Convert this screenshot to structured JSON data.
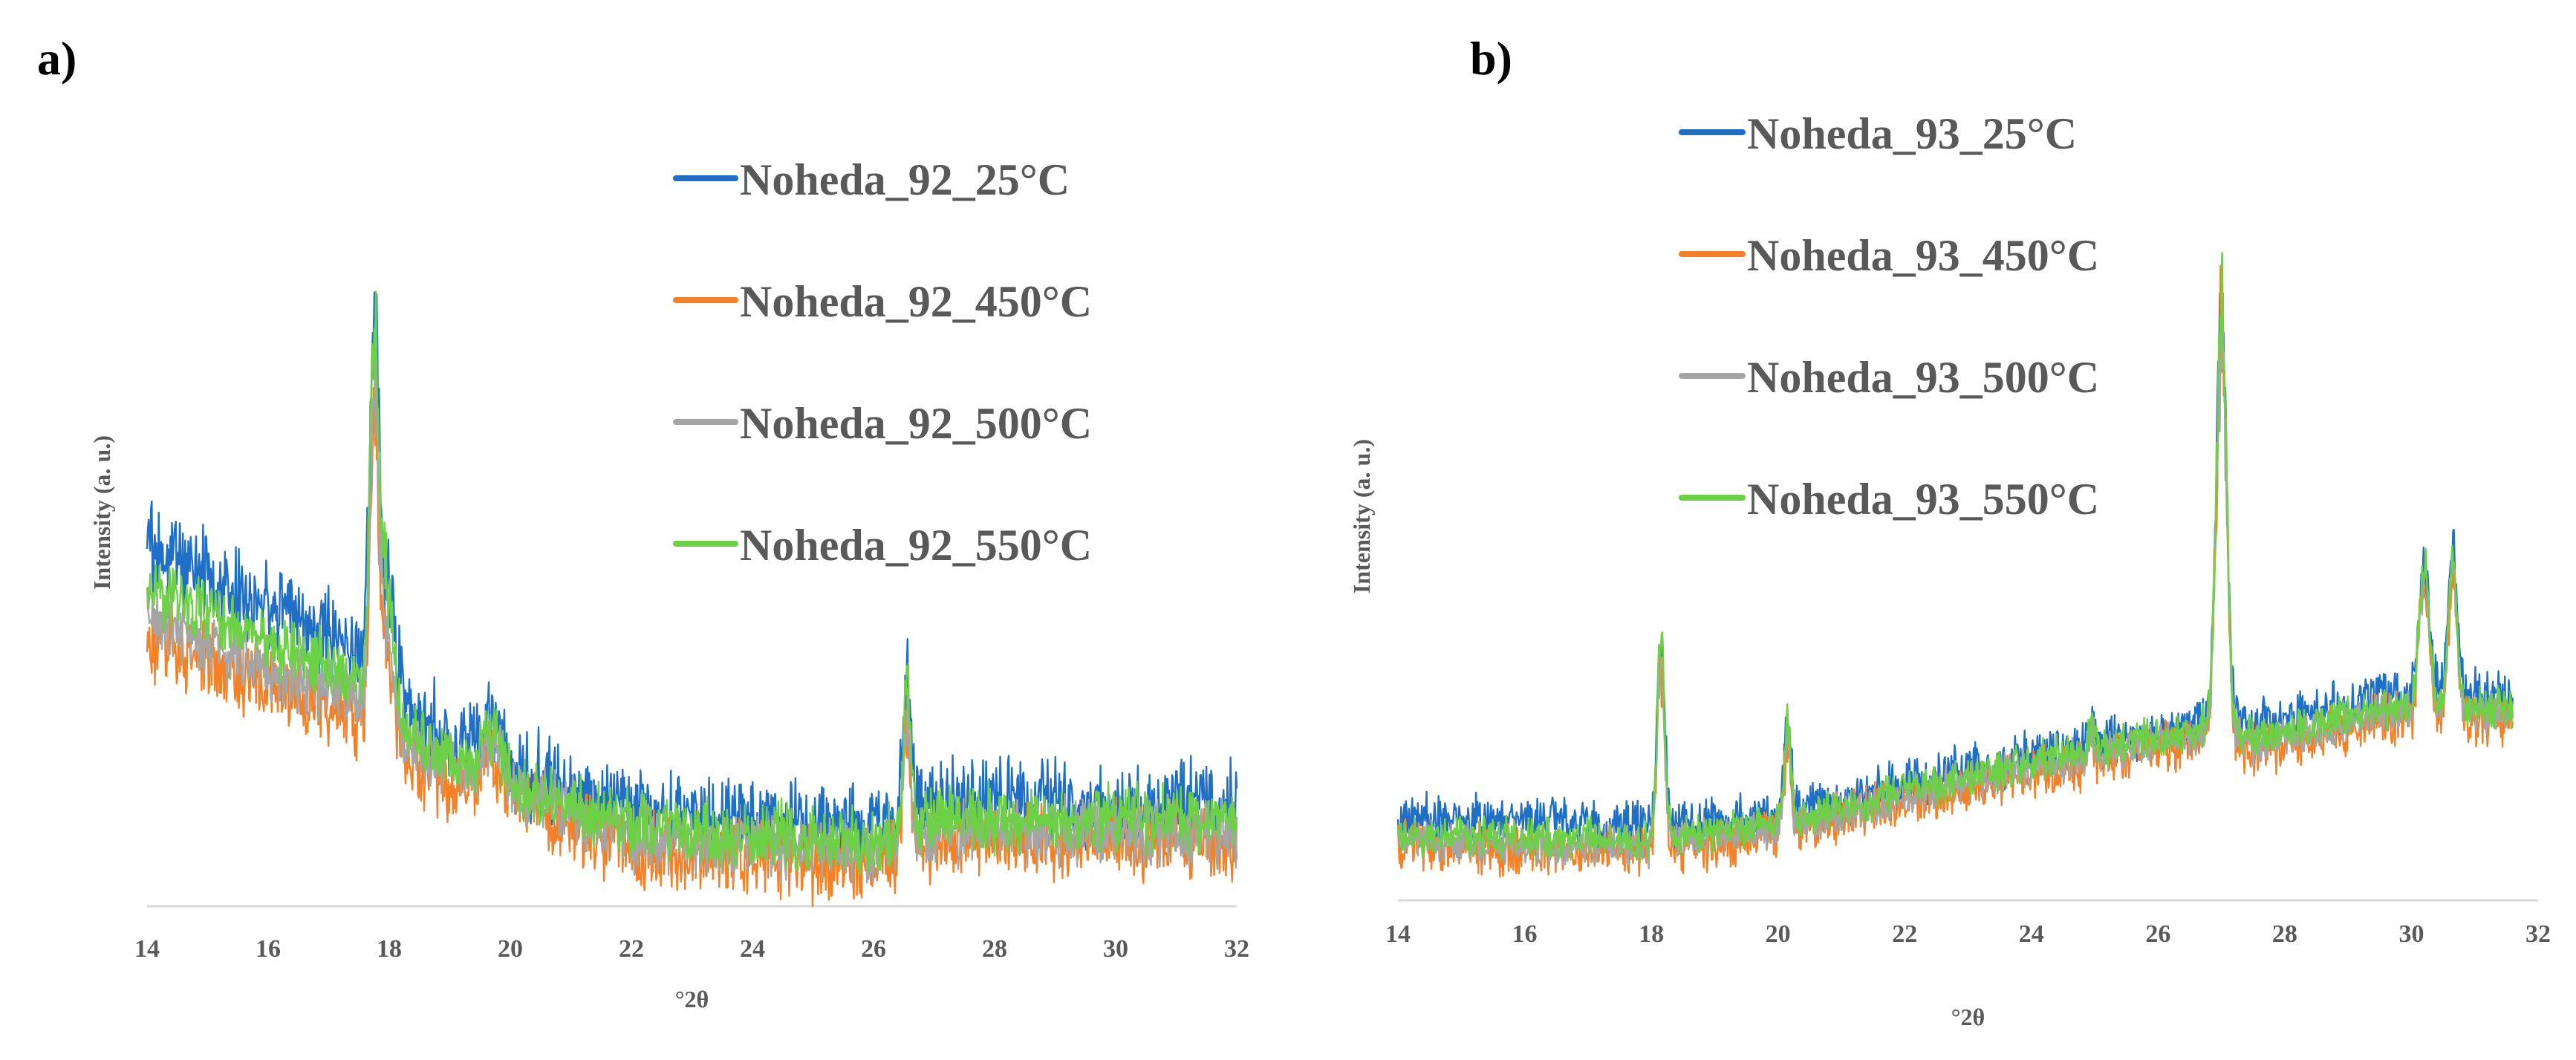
{
  "chart_data": [
    {
      "panel": "a)",
      "type": "line",
      "xlabel": "°2θ",
      "ylabel": "Intensity (a. u.)",
      "xlim": [
        14,
        32
      ],
      "ylim": [
        0,
        100
      ],
      "xticks": [
        "14",
        "16",
        "18",
        "20",
        "22",
        "24",
        "26",
        "28",
        "30",
        "32"
      ],
      "legend_position": "top-right",
      "peaks": [
        {
          "x": 17.75,
          "width": 0.07,
          "height": 55
        },
        {
          "x": 17.95,
          "width": 0.12,
          "height": 18
        },
        {
          "x": 19.7,
          "width": 0.15,
          "height": 7
        },
        {
          "x": 26.55,
          "width": 0.06,
          "height": 22
        }
      ],
      "series": [
        {
          "name": "Noheda_92_25°C",
          "color": "#1f6fc6",
          "baseline": [
            [
              14,
              62
            ],
            [
              16,
              52
            ],
            [
              17.5,
              44
            ],
            [
              18.5,
              32
            ],
            [
              20,
              24
            ],
            [
              22,
              17
            ],
            [
              24,
              15
            ],
            [
              26,
              14
            ],
            [
              27,
              18
            ],
            [
              32,
              18
            ]
          ],
          "noise": 9,
          "peak_scale": 1.05
        },
        {
          "name": "Noheda_92_450°C",
          "color": "#f58025",
          "baseline": [
            [
              14,
              46
            ],
            [
              16,
              38
            ],
            [
              17.5,
              32
            ],
            [
              18.5,
              24
            ],
            [
              20,
              18
            ],
            [
              22,
              10
            ],
            [
              24,
              8
            ],
            [
              26,
              7
            ],
            [
              27,
              11
            ],
            [
              32,
              11
            ]
          ],
          "noise": 8,
          "peak_scale": 0.92
        },
        {
          "name": "Noheda_92_500°C",
          "color": "#a5a5a5",
          "baseline": [
            [
              14,
              50
            ],
            [
              16,
              41
            ],
            [
              17.5,
              35
            ],
            [
              18.5,
              26
            ],
            [
              20,
              20
            ],
            [
              22,
              12
            ],
            [
              24,
              10
            ],
            [
              26,
              9
            ],
            [
              27,
              13
            ],
            [
              32,
              13
            ]
          ],
          "noise": 7,
          "peak_scale": 0.95
        },
        {
          "name": "Noheda_92_550°C",
          "color": "#6cd145",
          "baseline": [
            [
              14,
              55
            ],
            [
              16,
              46
            ],
            [
              17.5,
              39
            ],
            [
              18.5,
              28
            ],
            [
              20,
              21
            ],
            [
              22,
              14
            ],
            [
              24,
              12
            ],
            [
              26,
              11
            ],
            [
              27,
              15
            ],
            [
              32,
              15
            ]
          ],
          "noise": 7,
          "peak_scale": 1.12
        }
      ]
    },
    {
      "panel": "b)",
      "type": "line",
      "xlabel": "°2θ",
      "ylabel": "Intensity (a. u.)",
      "xlim": [
        14,
        32
      ],
      "ylim": [
        0,
        100
      ],
      "xticks": [
        "14",
        "16",
        "18",
        "20",
        "22",
        "24",
        "26",
        "28",
        "30",
        "32"
      ],
      "legend_position": "top-left",
      "peaks": [
        {
          "x": 18.15,
          "width": 0.06,
          "height": 30
        },
        {
          "x": 20.15,
          "width": 0.05,
          "height": 16
        },
        {
          "x": 24.95,
          "width": 0.04,
          "height": 5
        },
        {
          "x": 27.0,
          "width": 0.08,
          "height": 68
        },
        {
          "x": 30.2,
          "width": 0.08,
          "height": 22
        },
        {
          "x": 30.65,
          "width": 0.07,
          "height": 24
        }
      ],
      "series": [
        {
          "name": "Noheda_93_25°C",
          "color": "#1f6fc6",
          "baseline": [
            [
              14,
              14
            ],
            [
              18,
              12
            ],
            [
              20,
              14
            ],
            [
              22,
              19
            ],
            [
              24,
              24
            ],
            [
              26,
              28
            ],
            [
              26.8,
              30
            ],
            [
              27.5,
              29
            ],
            [
              28.5,
              31
            ],
            [
              29.5,
              34
            ],
            [
              31.5,
              34
            ]
          ],
          "noise": 5,
          "peak_scale": 1.02
        },
        {
          "name": "Noheda_93_450°C",
          "color": "#f58025",
          "baseline": [
            [
              14,
              9
            ],
            [
              18,
              8
            ],
            [
              20,
              11
            ],
            [
              22,
              16
            ],
            [
              24,
              21
            ],
            [
              26,
              25
            ],
            [
              26.8,
              27
            ],
            [
              27.5,
              25
            ],
            [
              28.5,
              27
            ],
            [
              29.5,
              30
            ],
            [
              31.5,
              30
            ]
          ],
          "noise": 5,
          "peak_scale": 1.0
        },
        {
          "name": "Noheda_93_500°C",
          "color": "#a5a5a5",
          "baseline": [
            [
              14,
              10
            ],
            [
              18,
              9
            ],
            [
              20,
              12
            ],
            [
              22,
              17
            ],
            [
              24,
              22
            ],
            [
              26,
              26
            ],
            [
              26.8,
              28
            ],
            [
              27.5,
              26
            ],
            [
              28.5,
              28
            ],
            [
              29.5,
              31
            ],
            [
              31.5,
              31
            ]
          ],
          "noise": 4,
          "peak_scale": 0.97
        },
        {
          "name": "Noheda_93_550°C",
          "color": "#6cd145",
          "baseline": [
            [
              14,
              11
            ],
            [
              18,
              10
            ],
            [
              20,
              13
            ],
            [
              22,
              18
            ],
            [
              24,
              23
            ],
            [
              26,
              27
            ],
            [
              26.8,
              29
            ],
            [
              27.5,
              27
            ],
            [
              28.5,
              29
            ],
            [
              29.5,
              32
            ],
            [
              31.5,
              32
            ]
          ],
          "noise": 4,
          "peak_scale": 1.04
        }
      ]
    }
  ]
}
